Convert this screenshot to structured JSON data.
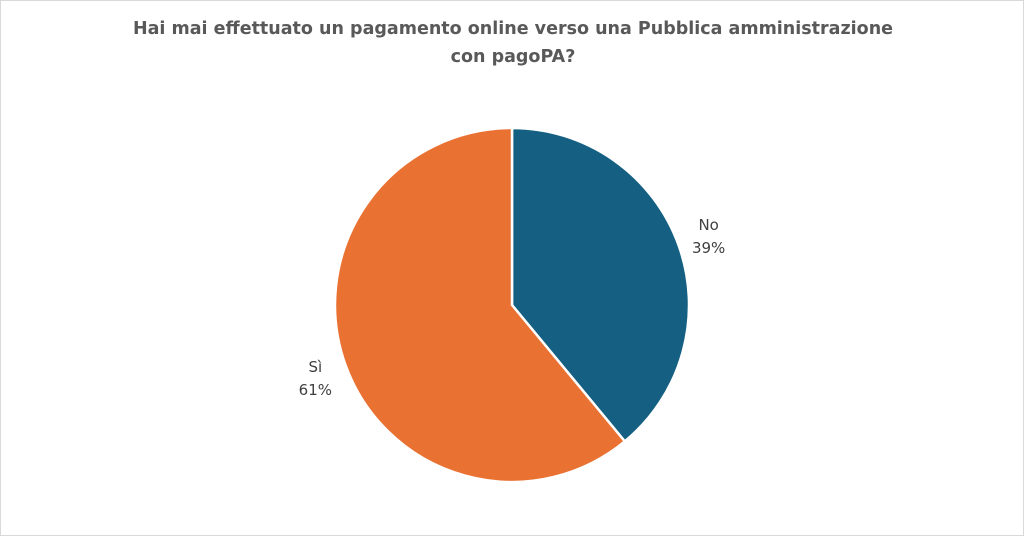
{
  "chart_data": {
    "type": "pie",
    "title": [
      "Hai mai effettuato un pagamento online verso una Pubblica amministrazione",
      "con pagoPA?"
    ],
    "slices": [
      {
        "label": "No",
        "value": 39,
        "value_label": "39%",
        "color": "#156082"
      },
      {
        "label": "Sì",
        "value": 61,
        "value_label": "61%",
        "color": "#E97132"
      }
    ],
    "start_angle_deg": 0,
    "direction": "clockwise",
    "slice_border_color": "#FFFFFF",
    "legend": "none"
  }
}
